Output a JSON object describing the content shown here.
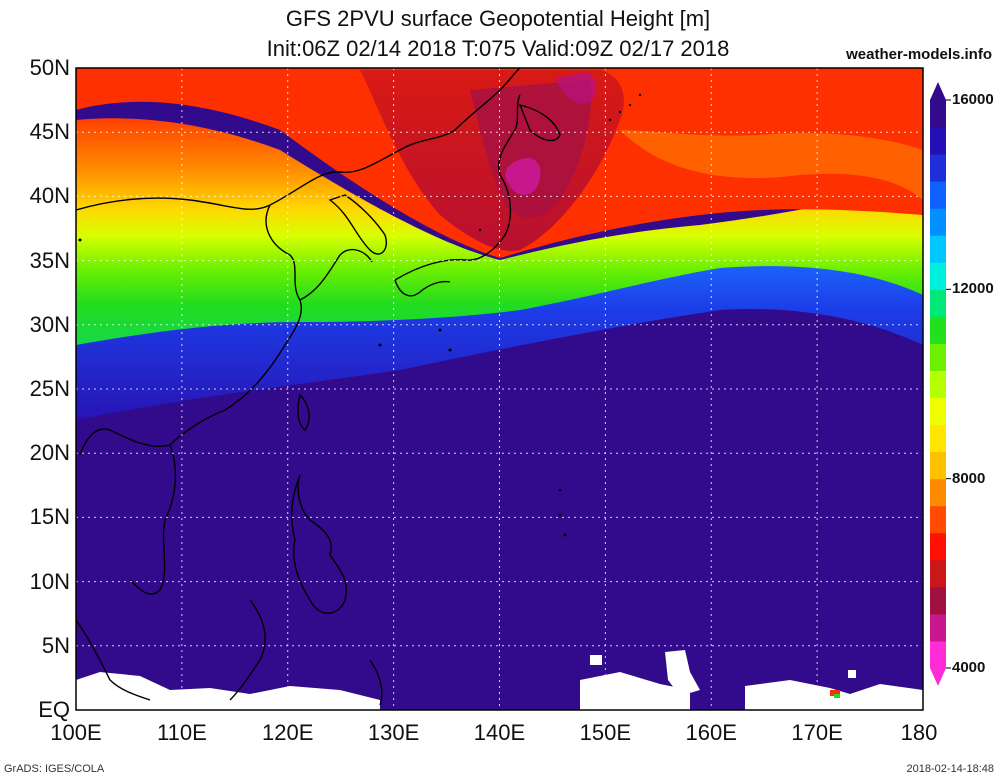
{
  "title": {
    "line1": "GFS 2PVU surface Geopotential Height [m]",
    "line2": "Init:06Z 02/14 2018 T:075 Valid:09Z 02/17 2018"
  },
  "site": "weather-models.info",
  "lat_labels": [
    "50N",
    "45N",
    "40N",
    "35N",
    "30N",
    "25N",
    "20N",
    "15N",
    "10N",
    "5N",
    "EQ"
  ],
  "lon_labels": [
    "100E",
    "110E",
    "120E",
    "130E",
    "140E",
    "150E",
    "160E",
    "170E",
    "180"
  ],
  "colorbar": {
    "labels": [
      "16000",
      "12000",
      "8000",
      "4000"
    ],
    "colors": [
      "#ff2bd7",
      "#c8168c",
      "#a01040",
      "#c81818",
      "#ff1000",
      "#ff4a00",
      "#ff8c00",
      "#ffc000",
      "#ffe600",
      "#f0ff00",
      "#b4ff00",
      "#6cf000",
      "#22e01e",
      "#00e878",
      "#00f0e0",
      "#00c8ff",
      "#0090ff",
      "#1060ff",
      "#1e2fd8",
      "#2410b4",
      "#320a8c"
    ]
  },
  "footer": {
    "left": "GrADS: IGES/COLA",
    "right": "2018-02-14-18:48"
  }
}
